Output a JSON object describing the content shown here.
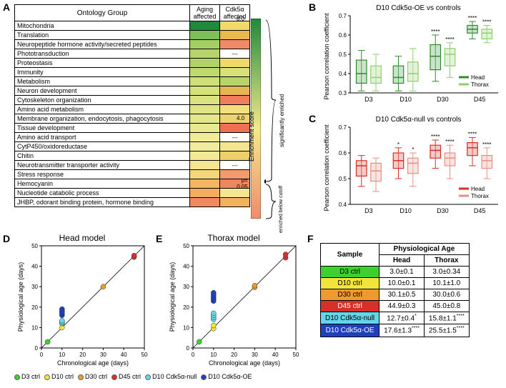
{
  "panelA": {
    "label": "A",
    "headers": {
      "ontology": "Ontology Group",
      "aging": "Aging affected",
      "cdk5a": "Cdk5α affected"
    },
    "rows": [
      {
        "name": "Mitochondria",
        "aging_color": "#1f8a3b",
        "cdk5a_color": "#f1da6b"
      },
      {
        "name": "Translation",
        "aging_color": "#7fbf5a",
        "cdk5a_color": "#e9b94e"
      },
      {
        "name": "Neuropeptide hormone activity/secreted peptides",
        "aging_color": "#a4cf63",
        "cdk5a_color": "#f08a66"
      },
      {
        "name": "Phototransduction",
        "aging_color": "#b6d46a",
        "cdk5a_color": "#ffffff",
        "cdk5a_text": "---"
      },
      {
        "name": "Proteostasis",
        "aging_color": "#b0d267",
        "cdk5a_color": "#f0d96a"
      },
      {
        "name": "Immunity",
        "aging_color": "#bfd971",
        "cdk5a_color": "#d8e07a"
      },
      {
        "name": "Metabolism",
        "aging_color": "#cfdf7a",
        "cdk5a_color": "#b6d46a"
      },
      {
        "name": "Neuron development",
        "aging_color": "#d5e17c",
        "cdk5a_color": "#e9b453"
      },
      {
        "name": "Cytoskeleton organization",
        "aging_color": "#dbe380",
        "cdk5a_color": "#ef7e5c"
      },
      {
        "name": "Amino acid metabolism",
        "aging_color": "#dee484",
        "cdk5a_color": "#f4e07a"
      },
      {
        "name": "Membrane organization, endocytosis, phagocytosis",
        "aging_color": "#e4e68b",
        "cdk5a_color": "#eed26d"
      },
      {
        "name": "Tissue development",
        "aging_color": "#e8e98f",
        "cdk5a_color": "#ef6f55"
      },
      {
        "name": "Amino acid transport",
        "aging_color": "#efeb97",
        "cdk5a_color": "#ffffff",
        "cdk5a_text": "---"
      },
      {
        "name": "CytP450/oxidoreductase",
        "aging_color": "#f2eb9d",
        "cdk5a_color": "#f4e590"
      },
      {
        "name": "Chitin",
        "aging_color": "#f2e896",
        "cdk5a_color": "#edd06a"
      },
      {
        "name": "Neurotransmitter transporter activity",
        "aging_color": "#f3e692",
        "cdk5a_color": "#ffffff",
        "cdk5a_text": "---"
      },
      {
        "name": "Stress response",
        "aging_color": "#f3d77a",
        "cdk5a_color": "#f39a6f"
      },
      {
        "name": "Hemocyanin",
        "aging_color": "#f4b65f",
        "cdk5a_color": "#f18560"
      },
      {
        "name": "Nucleotide catabolic process",
        "aging_color": "#f3ad5b",
        "cdk5a_color": "#f2e690"
      },
      {
        "name": "JHBP, odorant binding protein, hormone binding",
        "aging_color": "#f08860",
        "cdk5a_color": "#f2b15d"
      }
    ],
    "colorbar": {
      "label": "Enrichment score",
      "top_val": "8.0",
      "mid_val": "4.0",
      "cutoff_val": "1.3",
      "cutoff_label": "p=\n 0.05",
      "gradient_top": "#1f8a3b",
      "gradient_mid": "#f4e98a",
      "gradient_bot": "#f08b6b",
      "brace_top": "significantly enriched",
      "brace_bot": "enriched below cutoff"
    }
  },
  "panelB": {
    "label": "B",
    "title": "D10 Cdk5α-OE vs controls",
    "ylabel": "Pearson correlation coefficient",
    "xcats": [
      "D3",
      "D10",
      "D30",
      "D45"
    ],
    "ylim": [
      0.3,
      0.7
    ],
    "yticks": [
      0.3,
      0.4,
      0.5,
      0.6,
      0.7
    ],
    "legend": [
      {
        "label": "Head",
        "color": "#2e8b2e"
      },
      {
        "label": "Thorax",
        "color": "#8fcf6a"
      }
    ],
    "series": {
      "Head": {
        "color": "#2e8b2e",
        "boxes": [
          {
            "min": 0.31,
            "q1": 0.35,
            "med": 0.4,
            "q3": 0.47,
            "max": 0.52
          },
          {
            "min": 0.31,
            "q1": 0.35,
            "med": 0.38,
            "q3": 0.44,
            "max": 0.49
          },
          {
            "min": 0.36,
            "q1": 0.42,
            "med": 0.49,
            "q3": 0.55,
            "max": 0.6,
            "sig": "****"
          },
          {
            "min": 0.58,
            "q1": 0.61,
            "med": 0.63,
            "q3": 0.65,
            "max": 0.67,
            "sig": "****"
          }
        ]
      },
      "Thorax": {
        "color": "#8fcf6a",
        "boxes": [
          {
            "min": 0.31,
            "q1": 0.35,
            "med": 0.38,
            "q3": 0.44,
            "max": 0.5
          },
          {
            "min": 0.31,
            "q1": 0.36,
            "med": 0.4,
            "q3": 0.46,
            "max": 0.53
          },
          {
            "min": 0.38,
            "q1": 0.44,
            "med": 0.5,
            "q3": 0.53,
            "max": 0.56,
            "sig": "****"
          },
          {
            "min": 0.56,
            "q1": 0.58,
            "med": 0.61,
            "q3": 0.63,
            "max": 0.65,
            "sig": "****"
          }
        ]
      }
    }
  },
  "panelC": {
    "label": "C",
    "title": "D10 Cdk5α-null vs controls",
    "ylabel": "Pearson correlation coefficient",
    "xcats": [
      "D3",
      "D10",
      "D30",
      "D45"
    ],
    "ylim": [
      0.4,
      0.7
    ],
    "yticks": [
      0.4,
      0.5,
      0.6,
      0.7
    ],
    "legend": [
      {
        "label": "Head",
        "color": "#d7302a"
      },
      {
        "label": "Thorax",
        "color": "#e78f84"
      }
    ],
    "series": {
      "Head": {
        "color": "#d7302a",
        "boxes": [
          {
            "min": 0.47,
            "q1": 0.51,
            "med": 0.55,
            "q3": 0.57,
            "max": 0.59
          },
          {
            "min": 0.5,
            "q1": 0.54,
            "med": 0.57,
            "q3": 0.6,
            "max": 0.62,
            "sig": "*"
          },
          {
            "min": 0.54,
            "q1": 0.58,
            "med": 0.61,
            "q3": 0.63,
            "max": 0.65,
            "sig": "****"
          },
          {
            "min": 0.55,
            "q1": 0.59,
            "med": 0.62,
            "q3": 0.64,
            "max": 0.66,
            "sig": "****"
          }
        ]
      },
      "Thorax": {
        "color": "#e78f84",
        "boxes": [
          {
            "min": 0.45,
            "q1": 0.49,
            "med": 0.53,
            "q3": 0.56,
            "max": 0.58
          },
          {
            "min": 0.47,
            "q1": 0.52,
            "med": 0.56,
            "q3": 0.58,
            "max": 0.6,
            "sig": "*"
          },
          {
            "min": 0.5,
            "q1": 0.55,
            "med": 0.58,
            "q3": 0.6,
            "max": 0.63,
            "sig": "****"
          },
          {
            "min": 0.5,
            "q1": 0.54,
            "med": 0.57,
            "q3": 0.59,
            "max": 0.62,
            "sig": "****"
          }
        ]
      }
    }
  },
  "scatterCommon": {
    "xlabel": "Chronological age (days)",
    "ylabel": "Physiological age (days)",
    "xlim": [
      0,
      50
    ],
    "ylim": [
      0,
      50
    ],
    "xticks": [
      0,
      10,
      20,
      30,
      40,
      50
    ],
    "yticks": [
      0,
      10,
      20,
      30,
      40,
      50
    ],
    "diag_color": "#000"
  },
  "panelD": {
    "label": "D",
    "title": "Head model",
    "points": [
      {
        "x": 3,
        "y": 3,
        "color": "#3fcf2f"
      },
      {
        "x": 10,
        "y": 10,
        "color": "#f2e43a"
      },
      {
        "x": 30,
        "y": 30,
        "color": "#ef9a2d"
      },
      {
        "x": 45,
        "y": 44.5,
        "color": "#d7302a"
      },
      {
        "x": 45,
        "y": 45.2,
        "color": "#d7302a"
      },
      {
        "x": 10,
        "y": 12,
        "color": "#63d7e9"
      },
      {
        "x": 10,
        "y": 13,
        "color": "#63d7e9"
      },
      {
        "x": 10,
        "y": 12.5,
        "color": "#63d7e9"
      },
      {
        "x": 10,
        "y": 13.3,
        "color": "#63d7e9"
      },
      {
        "x": 10,
        "y": 16,
        "color": "#1f3fbf"
      },
      {
        "x": 10,
        "y": 17,
        "color": "#1f3fbf"
      },
      {
        "x": 10,
        "y": 18,
        "color": "#1f3fbf"
      },
      {
        "x": 10,
        "y": 19,
        "color": "#1f3fbf"
      },
      {
        "x": 10,
        "y": 17.5,
        "color": "#1f3fbf"
      }
    ]
  },
  "panelE": {
    "label": "E",
    "title": "Thorax model",
    "points": [
      {
        "x": 3,
        "y": 3,
        "color": "#3fcf2f"
      },
      {
        "x": 10,
        "y": 9.5,
        "color": "#f2e43a"
      },
      {
        "x": 10,
        "y": 11,
        "color": "#f2e43a"
      },
      {
        "x": 30,
        "y": 29.7,
        "color": "#ef9a2d"
      },
      {
        "x": 30,
        "y": 30.5,
        "color": "#ef9a2d"
      },
      {
        "x": 45,
        "y": 44.2,
        "color": "#d7302a"
      },
      {
        "x": 45,
        "y": 45.8,
        "color": "#d7302a"
      },
      {
        "x": 10,
        "y": 14,
        "color": "#63d7e9"
      },
      {
        "x": 10,
        "y": 15,
        "color": "#63d7e9"
      },
      {
        "x": 10,
        "y": 16,
        "color": "#63d7e9"
      },
      {
        "x": 10,
        "y": 17,
        "color": "#63d7e9"
      },
      {
        "x": 10,
        "y": 23,
        "color": "#1f3fbf"
      },
      {
        "x": 10,
        "y": 24,
        "color": "#1f3fbf"
      },
      {
        "x": 10,
        "y": 25,
        "color": "#1f3fbf"
      },
      {
        "x": 10,
        "y": 26,
        "color": "#1f3fbf"
      },
      {
        "x": 10,
        "y": 27,
        "color": "#1f3fbf"
      }
    ]
  },
  "dotLegend": [
    {
      "label": "D3 ctrl",
      "color": "#3fcf2f"
    },
    {
      "label": "D10 ctrl",
      "color": "#f2e43a"
    },
    {
      "label": "D30 ctrl",
      "color": "#ef9a2d"
    },
    {
      "label": "D45 ctrl",
      "color": "#d7302a"
    },
    {
      "label": "D10 Cdk5α-null",
      "color": "#63d7e9"
    },
    {
      "label": "D10 Cdk5α-OE",
      "color": "#1f3fbf"
    }
  ],
  "panelF": {
    "label": "F",
    "headers": {
      "sample": "Sample",
      "span": "Physiological Age",
      "head": "Head",
      "thorax": "Thorax"
    },
    "rows": [
      {
        "sample": "D3 ctrl",
        "bg": "#3fcf2f",
        "fg": "#000",
        "head": "3.0±0.1",
        "thorax": "3.0±0.34"
      },
      {
        "sample": "D10 ctrl",
        "bg": "#f2e43a",
        "fg": "#000",
        "head": "10.0±0.1",
        "thorax": "10.1±1.0"
      },
      {
        "sample": "D30 ctrl",
        "bg": "#ef9a2d",
        "fg": "#000",
        "head": "30.1±0.5",
        "thorax": "30.0±0.6"
      },
      {
        "sample": "D45 ctrl",
        "bg": "#d7302a",
        "fg": "#fff",
        "head": "44.9±0.3",
        "thorax": "45.0±0.8"
      },
      {
        "sample": "D10 Cdk5α-null",
        "bg": "#63d7e9",
        "fg": "#000",
        "head": "12.7±0.4",
        "head_sig": "*",
        "thorax": "15.8±1.1",
        "thorax_sig": "****"
      },
      {
        "sample": "D10 Cdk5α-OE",
        "bg": "#1f3fbf",
        "fg": "#fff",
        "head": "17.6±1.3",
        "head_sig": "****",
        "thorax": "25.5±1.5",
        "thorax_sig": "****"
      }
    ]
  }
}
